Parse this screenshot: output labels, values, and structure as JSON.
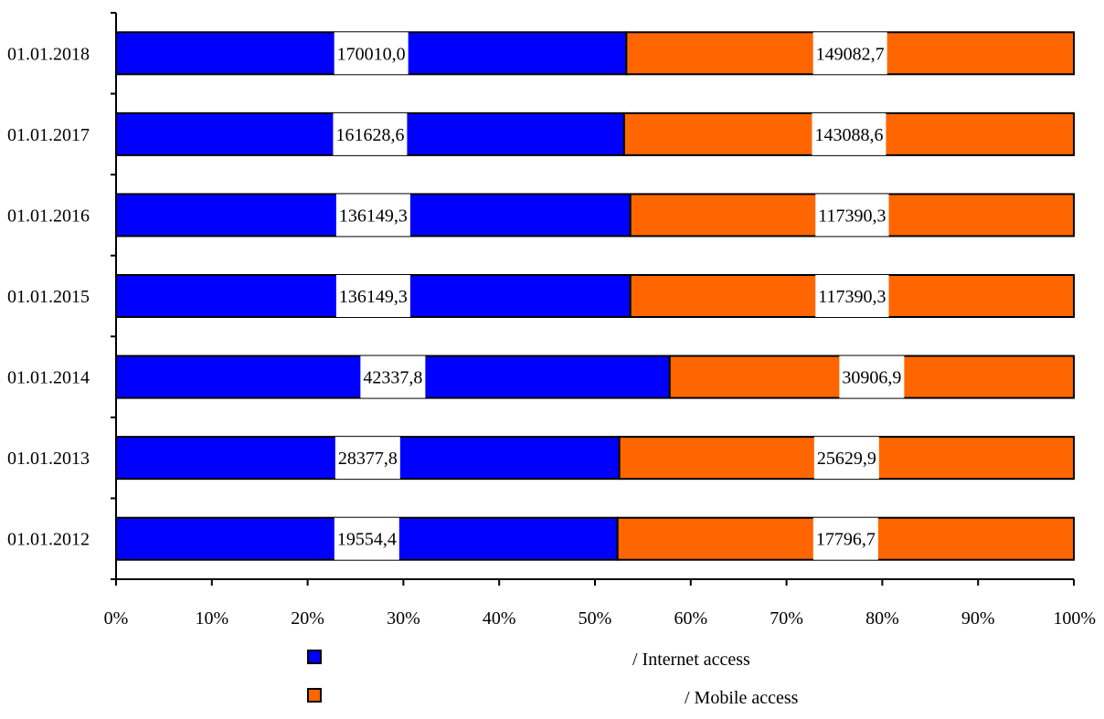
{
  "chart_data": {
    "type": "bar",
    "orientation": "horizontal",
    "stacking": "percent",
    "categories": [
      "01.01.2018",
      "01.01.2017",
      "01.01.2016",
      "01.01.2015",
      "01.01.2014",
      "01.01.2013",
      "01.01.2012"
    ],
    "series": [
      {
        "name": "/ Internet access",
        "color": "#0000FF",
        "values": [
          170010.0,
          161628.6,
          136149.3,
          136149.3,
          42337.8,
          28377.8,
          19554.4
        ],
        "labels": [
          "170010,0",
          "161628,6",
          "136149,3",
          "136149,3",
          "42337,8",
          "28377,8",
          "19554,4"
        ]
      },
      {
        "name": "/ Mobile access",
        "color": "#FF6600",
        "values": [
          149082.7,
          143088.6,
          117390.3,
          117390.3,
          30906.9,
          25629.9,
          17796.7
        ],
        "labels": [
          "149082,7",
          "143088,6",
          "117390,3",
          "117390,3",
          "30906,9",
          "25629,9",
          "17796,7"
        ]
      }
    ],
    "x_ticks": [
      "0%",
      "10%",
      "20%",
      "30%",
      "40%",
      "50%",
      "60%",
      "70%",
      "80%",
      "90%",
      "100%"
    ],
    "xlim": [
      0,
      100
    ],
    "legend_position": "bottom",
    "grid": false
  }
}
